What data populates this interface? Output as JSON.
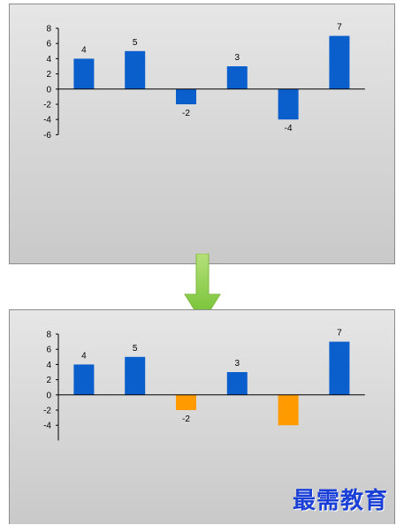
{
  "chart_data": [
    {
      "type": "bar",
      "title": "",
      "xlabel": "",
      "ylabel": "",
      "ylim": [
        -6,
        8
      ],
      "yticks": [
        8,
        6,
        4,
        2,
        0,
        -2,
        -4,
        -6
      ],
      "values": [
        4,
        5,
        -2,
        3,
        -4,
        7
      ],
      "data_labels": [
        "4",
        "5",
        "-2",
        "3",
        "-4",
        "7"
      ],
      "colors": [
        "#0a5fcc",
        "#0a5fcc",
        "#0a5fcc",
        "#0a5fcc",
        "#0a5fcc",
        "#0a5fcc"
      ],
      "grid": false
    },
    {
      "type": "bar",
      "title": "",
      "xlabel": "",
      "ylabel": "",
      "ylim": [
        -6,
        8
      ],
      "yticks_visible": [
        8,
        6,
        4,
        2,
        0,
        -2,
        -4
      ],
      "values": [
        4,
        5,
        -2,
        3,
        -4,
        7
      ],
      "data_labels": [
        "4",
        "5",
        "-2",
        "3",
        "",
        "7"
      ],
      "colors": [
        "#0a5fcc",
        "#0a5fcc",
        "#ff9a00",
        "#0a5fcc",
        "#ff9a00",
        "#0a5fcc"
      ],
      "grid": false
    }
  ],
  "colors": {
    "positive": "#0a5fcc",
    "negative_highlight": "#ff9a00",
    "arrow": "#8ed14b",
    "watermark": "#1a3fd6"
  },
  "watermark": {
    "text": "最需教育"
  },
  "arrow": {
    "icon": "down-arrow-icon"
  }
}
